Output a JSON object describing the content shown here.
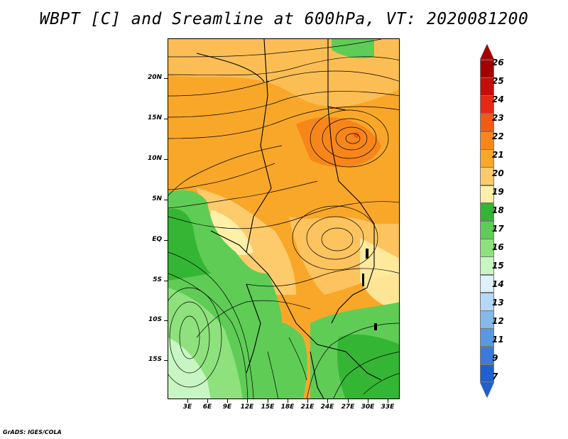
{
  "title": "WBPT [C] and Sreamline at 600hPa, VT: 2020081200",
  "footer": "GrADS: IGES/COLA",
  "map": {
    "variable": "WBPT [C]",
    "overlay": "Sreamline",
    "level": "600hPa",
    "valid_time": "2020081200",
    "lat_labels": [
      "20N",
      "15N",
      "10N",
      "5N",
      "EQ",
      "5S",
      "10S",
      "15S"
    ],
    "lon_labels": [
      "3E",
      "6E",
      "9E",
      "12E",
      "15E",
      "18E",
      "21E",
      "24E",
      "27E",
      "30E",
      "33E"
    ]
  },
  "colorbar": {
    "labels": [
      "26",
      "25",
      "24",
      "23",
      "22",
      "21",
      "20",
      "19",
      "18",
      "17",
      "16",
      "15",
      "14",
      "13",
      "12",
      "11",
      "9",
      "7"
    ],
    "colors": [
      "#a50000",
      "#c80c0c",
      "#e62814",
      "#f55a12",
      "#f7861a",
      "#f9a729",
      "#fdcb6c",
      "#fef0a8",
      "#35b534",
      "#5fcc56",
      "#8ee17d",
      "#c8f6c3",
      "#dff2fc",
      "#b4d8f6",
      "#86b8ec",
      "#5b98e2",
      "#3b7ad8",
      "#1f5fce"
    ]
  },
  "colors": {
    "orange": "#f9a729",
    "light_orange": "#fdcb6c",
    "pale_yellow": "#fef0a8",
    "green": "#35b534",
    "mid_green": "#5fcc56",
    "light_green": "#8ee17d",
    "pale_green": "#c8f6c3"
  }
}
